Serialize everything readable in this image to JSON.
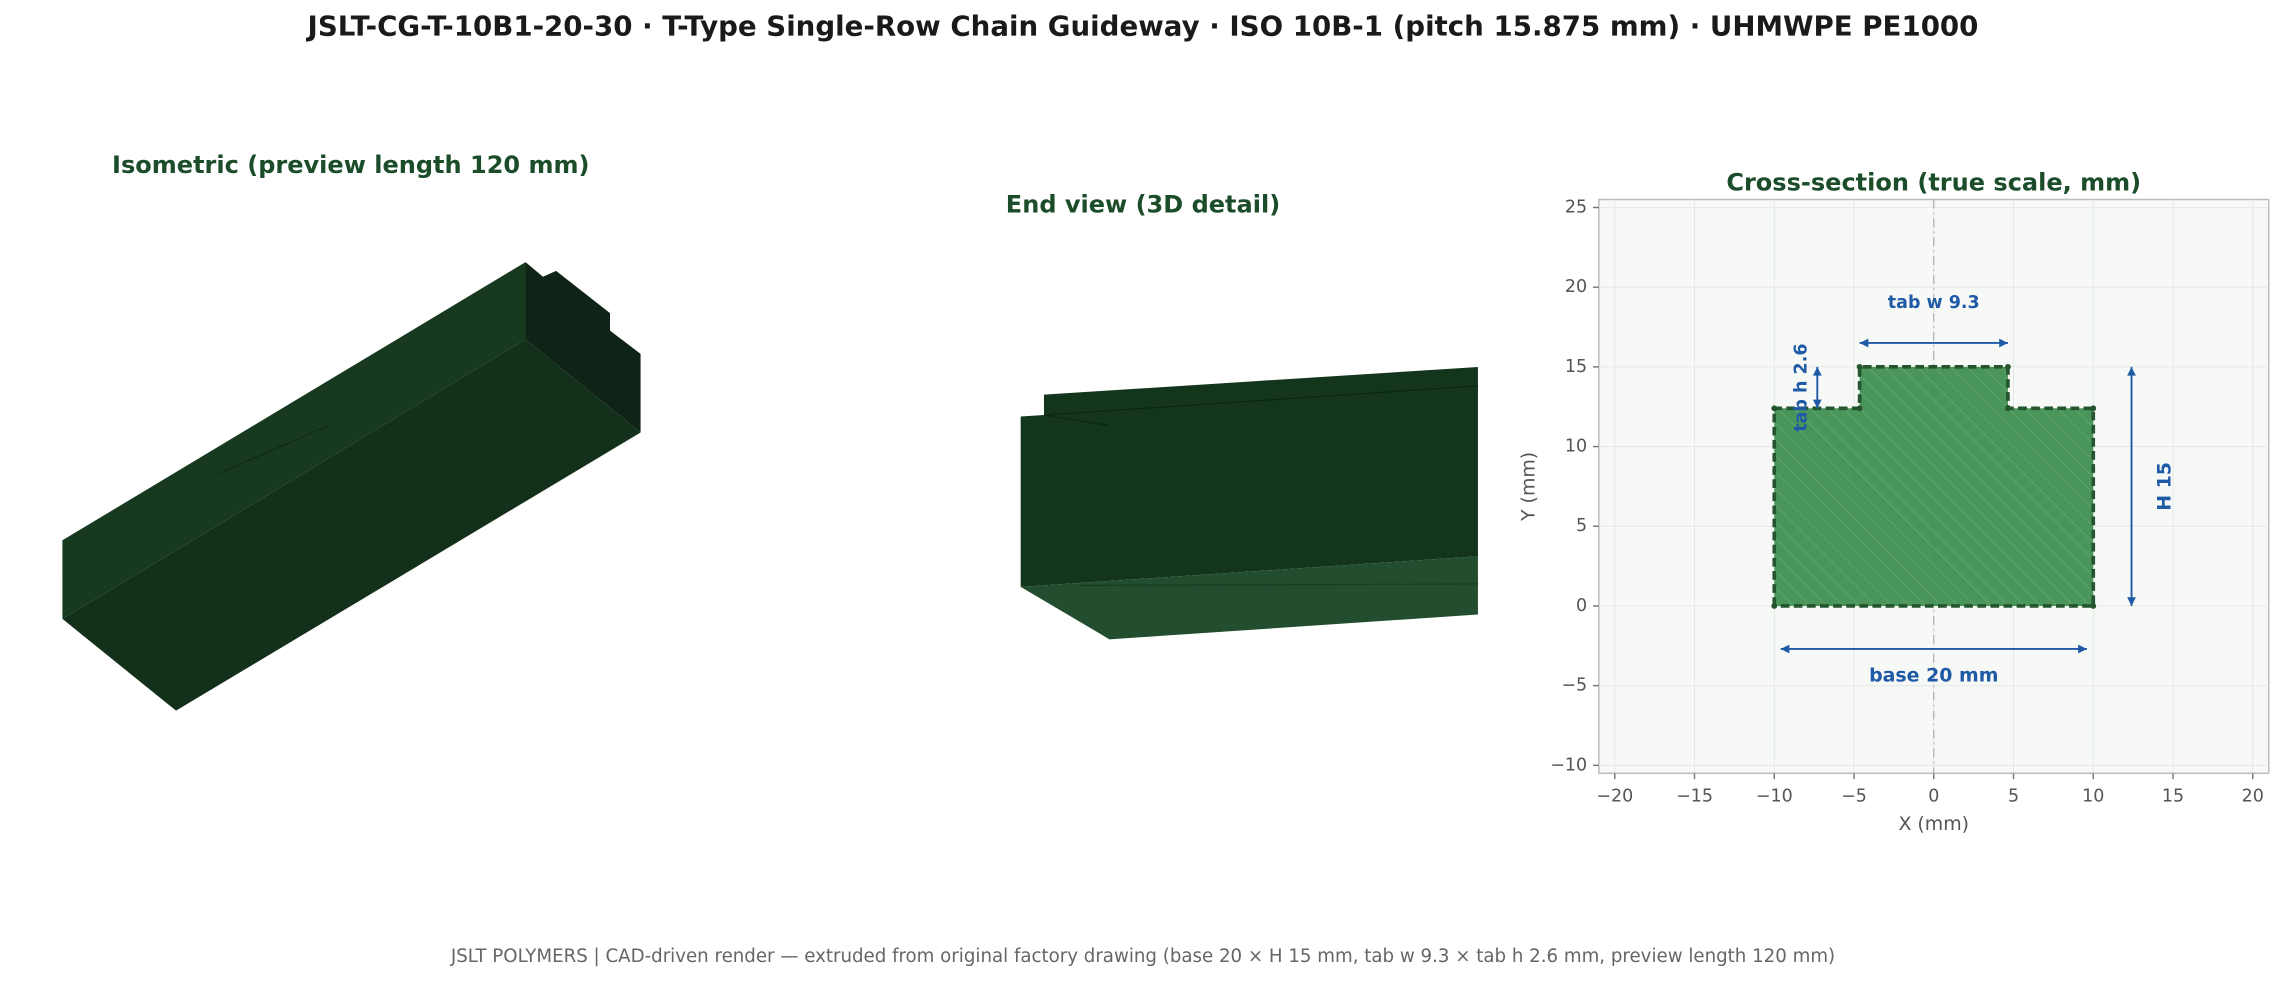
{
  "title": "JSLT-CG-T-10B1-20-30   ·   T-Type Single-Row Chain Guideway   ·   ISO 10B-1 (pitch 15.875 mm)   ·   UHMWPE PE1000",
  "panels": {
    "isometric": "Isometric  (preview length 120 mm)",
    "end_view": "End view (3D detail)"
  },
  "footer": "JSLT POLYMERS  |  CAD-driven render — extruded from original factory drawing  (base 20 × H 15 mm, tab w 9.3 × tab h 2.6 mm, preview length 120 mm)",
  "chart_data": {
    "type": "polygon",
    "title": "Cross-section (true scale, mm)",
    "x_label": "X  (mm)",
    "y_label": "Y  (mm)",
    "x": [
      -10,
      -10,
      -4.65,
      -4.65,
      4.65,
      4.65,
      10,
      10
    ],
    "y": [
      0,
      12.4,
      12.4,
      15,
      15,
      12.4,
      12.4,
      0
    ],
    "color": "#3f8f52",
    "edge_color": "#24552f",
    "xlim": [
      -21,
      21
    ],
    "ylim": [
      -10.5,
      25.5
    ],
    "xticks": [
      {
        "value": -20,
        "label": "−20"
      },
      {
        "value": -15,
        "label": "−15"
      },
      {
        "value": -10,
        "label": "−10"
      },
      {
        "value": -5,
        "label": "−5"
      },
      0,
      5,
      10,
      15,
      20
    ],
    "yticks": [
      {
        "value": -10,
        "label": "−10"
      },
      {
        "value": -5,
        "label": "−5"
      },
      0,
      5,
      10,
      15,
      20,
      25
    ],
    "grid": true,
    "annotations": {
      "tab_w": "tab w 9.3",
      "tab_h": "tab h 2.6",
      "height": "H 15",
      "base": "base 20 mm"
    }
  }
}
